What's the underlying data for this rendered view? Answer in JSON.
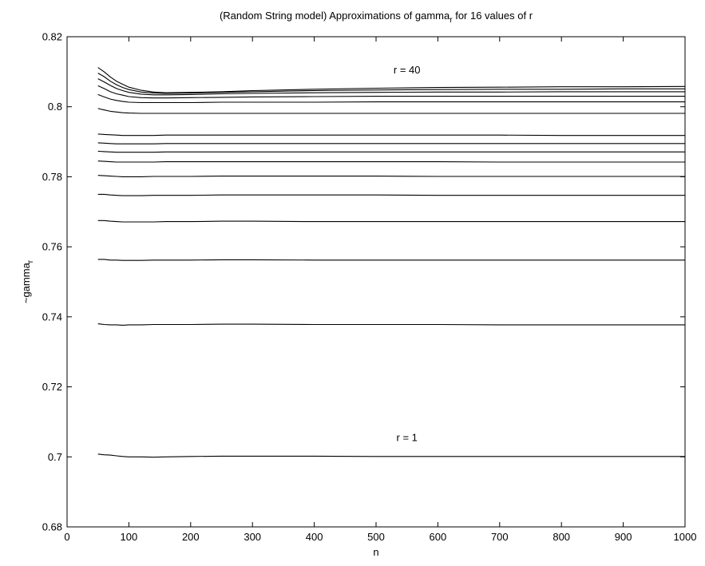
{
  "chart_data": {
    "type": "line",
    "title": "(Random String model) Approximations of gamma",
    "title_subscript": "r",
    "title_suffix": " for 16 values of r",
    "xlabel": "n",
    "ylabel": "~gamma",
    "ylabel_subscript": "r",
    "xlim": [
      0,
      1000
    ],
    "ylim": [
      0.68,
      0.82
    ],
    "xticks": [
      0,
      100,
      200,
      300,
      400,
      500,
      600,
      700,
      800,
      900,
      1000
    ],
    "yticks": [
      0.68,
      0.7,
      0.72,
      0.74,
      0.76,
      0.78,
      0.8,
      0.82
    ],
    "xtick_labels": [
      "0",
      "100",
      "200",
      "300",
      "400",
      "500",
      "600",
      "700",
      "800",
      "900",
      "1000"
    ],
    "ytick_labels": [
      "0.68",
      "0.7",
      "0.72",
      "0.74",
      "0.76",
      "0.78",
      "0.8",
      "0.82"
    ],
    "grid": false,
    "line_color": "#000000",
    "x": [
      50,
      60,
      70,
      80,
      90,
      100,
      120,
      140,
      160,
      200,
      250,
      300,
      400,
      500,
      600,
      700,
      800,
      900,
      1000
    ],
    "series": [
      {
        "values": [
          0.7008,
          0.7006,
          0.7005,
          0.7003,
          0.7001,
          0.7,
          0.7,
          0.6999,
          0.7,
          0.7001,
          0.7002,
          0.7002,
          0.7002,
          0.7001,
          0.7001,
          0.7001,
          0.7001,
          0.7001,
          0.7001
        ]
      },
      {
        "values": [
          0.738,
          0.7378,
          0.7377,
          0.7377,
          0.7376,
          0.7377,
          0.7377,
          0.7378,
          0.7378,
          0.7378,
          0.7379,
          0.7379,
          0.7378,
          0.7378,
          0.7378,
          0.7377,
          0.7377,
          0.7377,
          0.7377
        ]
      },
      {
        "values": [
          0.7564,
          0.7564,
          0.7562,
          0.7562,
          0.7561,
          0.7561,
          0.7561,
          0.7562,
          0.7562,
          0.7562,
          0.7563,
          0.7563,
          0.7562,
          0.7562,
          0.7562,
          0.7562,
          0.7562,
          0.7562,
          0.7562
        ]
      },
      {
        "values": [
          0.7675,
          0.7675,
          0.7673,
          0.7672,
          0.7671,
          0.7671,
          0.7671,
          0.7671,
          0.7672,
          0.7672,
          0.7673,
          0.7673,
          0.7672,
          0.7672,
          0.7672,
          0.7672,
          0.7672,
          0.7672,
          0.7672
        ]
      },
      {
        "values": [
          0.775,
          0.775,
          0.7748,
          0.7747,
          0.7746,
          0.7746,
          0.7746,
          0.7747,
          0.7747,
          0.7747,
          0.7748,
          0.7748,
          0.7748,
          0.7748,
          0.7747,
          0.7747,
          0.7747,
          0.7747,
          0.7747
        ]
      },
      {
        "values": [
          0.7804,
          0.7803,
          0.7802,
          0.7801,
          0.78,
          0.78,
          0.78,
          0.7801,
          0.7801,
          0.7801,
          0.7802,
          0.7802,
          0.7802,
          0.7802,
          0.7801,
          0.7801,
          0.7801,
          0.7801,
          0.7801
        ]
      },
      {
        "values": [
          0.7845,
          0.7844,
          0.7843,
          0.7842,
          0.7842,
          0.7842,
          0.7842,
          0.7842,
          0.7843,
          0.7843,
          0.7843,
          0.7843,
          0.7843,
          0.7843,
          0.7843,
          0.7842,
          0.7842,
          0.7842,
          0.7842
        ]
      },
      {
        "values": [
          0.7873,
          0.7872,
          0.7871,
          0.787,
          0.787,
          0.787,
          0.787,
          0.787,
          0.7871,
          0.7871,
          0.7871,
          0.7871,
          0.7871,
          0.7871,
          0.7871,
          0.7871,
          0.7871,
          0.7871,
          0.7871
        ]
      },
      {
        "values": [
          0.7897,
          0.7896,
          0.7895,
          0.7894,
          0.7894,
          0.7894,
          0.7894,
          0.7894,
          0.7895,
          0.7895,
          0.7895,
          0.7895,
          0.7895,
          0.7895,
          0.7895,
          0.7895,
          0.7895,
          0.7895,
          0.7895
        ]
      },
      {
        "values": [
          0.7922,
          0.7921,
          0.792,
          0.7919,
          0.7918,
          0.7918,
          0.7918,
          0.7918,
          0.7919,
          0.7919,
          0.7919,
          0.7919,
          0.7919,
          0.7919,
          0.7919,
          0.7919,
          0.7918,
          0.7918,
          0.7918
        ]
      },
      {
        "values": [
          0.7995,
          0.7991,
          0.7987,
          0.7985,
          0.7983,
          0.7982,
          0.7981,
          0.7981,
          0.7981,
          0.7981,
          0.7981,
          0.7981,
          0.7981,
          0.7981,
          0.7981,
          0.7981,
          0.7981,
          0.7981,
          0.7981
        ]
      },
      {
        "values": [
          0.8035,
          0.8028,
          0.8022,
          0.8018,
          0.8015,
          0.8013,
          0.8012,
          0.8012,
          0.8012,
          0.8012,
          0.8013,
          0.8013,
          0.8013,
          0.8014,
          0.8014,
          0.8014,
          0.8014,
          0.8014,
          0.8014
        ]
      },
      {
        "values": [
          0.806,
          0.8052,
          0.8043,
          0.8037,
          0.8033,
          0.8029,
          0.8026,
          0.8025,
          0.8025,
          0.8026,
          0.8027,
          0.8028,
          0.8029,
          0.803,
          0.803,
          0.803,
          0.803,
          0.803,
          0.803
        ]
      },
      {
        "values": [
          0.808,
          0.8071,
          0.8061,
          0.8052,
          0.8046,
          0.8041,
          0.8036,
          0.8034,
          0.8034,
          0.8035,
          0.8037,
          0.8038,
          0.804,
          0.8041,
          0.8042,
          0.8042,
          0.8043,
          0.8043,
          0.8043
        ]
      },
      {
        "values": [
          0.8096,
          0.8086,
          0.8073,
          0.8063,
          0.8055,
          0.8049,
          0.8042,
          0.8039,
          0.8038,
          0.8039,
          0.8041,
          0.8043,
          0.8046,
          0.8048,
          0.8049,
          0.805,
          0.805,
          0.8051,
          0.8051
        ]
      },
      {
        "values": [
          0.8112,
          0.81,
          0.8085,
          0.8073,
          0.8064,
          0.8056,
          0.8047,
          0.8042,
          0.804,
          0.8041,
          0.8043,
          0.8046,
          0.805,
          0.8053,
          0.8055,
          0.8056,
          0.8057,
          0.8057,
          0.8058
        ]
      }
    ],
    "annotations": [
      {
        "text": "r = 40",
        "x": 550,
        "y": 0.8095
      },
      {
        "text": "r = 1",
        "x": 550,
        "y": 0.7045
      }
    ]
  }
}
